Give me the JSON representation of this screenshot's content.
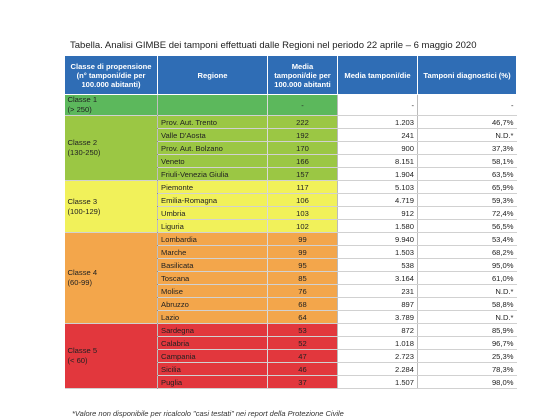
{
  "title": "Tabella. Analisi GIMBE dei tamponi effettuati dalle Regioni nel periodo 22 aprile – 6 maggio 2020",
  "headers": {
    "classe": "Classe di propensione (n° tamponi/die per 100.000 abitanti)",
    "regione": "Regione",
    "media_100k": "Media tamponi/die per 100.000 abitanti",
    "media_die": "Media tamponi/die",
    "diagnostici": "Tamponi diagnostici (%)"
  },
  "colors": {
    "header": "#2f6db5",
    "classe1": "#5cb85c",
    "classe2": "#9bc744",
    "classe3": "#f1f15a",
    "classe4": "#f3a64b",
    "classe5": "#e2373d"
  },
  "classes": [
    {
      "name": "Classe 1",
      "range": "(> 250)",
      "rows": [
        {
          "regione": "",
          "media_100k": "-",
          "media_die": "-",
          "diagnostici": "-"
        }
      ]
    },
    {
      "name": "Classe 2",
      "range": "(130-250)",
      "rows": [
        {
          "regione": "Prov. Aut. Trento",
          "media_100k": "222",
          "media_die": "1.203",
          "diagnostici": "46,7%"
        },
        {
          "regione": "Valle D'Aosta",
          "media_100k": "192",
          "media_die": "241",
          "diagnostici": "N.D.*"
        },
        {
          "regione": "Prov. Aut. Bolzano",
          "media_100k": "170",
          "media_die": "900",
          "diagnostici": "37,3%"
        },
        {
          "regione": "Veneto",
          "media_100k": "166",
          "media_die": "8.151",
          "diagnostici": "58,1%"
        },
        {
          "regione": "Friuli-Venezia Giulia",
          "media_100k": "157",
          "media_die": "1.904",
          "diagnostici": "63,5%"
        }
      ]
    },
    {
      "name": "Classe 3",
      "range": "(100-129)",
      "rows": [
        {
          "regione": "Piemonte",
          "media_100k": "117",
          "media_die": "5.103",
          "diagnostici": "65,9%"
        },
        {
          "regione": "Emilia-Romagna",
          "media_100k": "106",
          "media_die": "4.719",
          "diagnostici": "59,3%"
        },
        {
          "regione": "Umbria",
          "media_100k": "103",
          "media_die": "912",
          "diagnostici": "72,4%"
        },
        {
          "regione": "Liguria",
          "media_100k": "102",
          "media_die": "1.580",
          "diagnostici": "56,5%"
        }
      ]
    },
    {
      "name": "Classe 4",
      "range": "(60-99)",
      "rows": [
        {
          "regione": "Lombardia",
          "media_100k": "99",
          "media_die": "9.940",
          "diagnostici": "53,4%"
        },
        {
          "regione": "Marche",
          "media_100k": "99",
          "media_die": "1.503",
          "diagnostici": "68,2%"
        },
        {
          "regione": "Basilicata",
          "media_100k": "95",
          "media_die": "538",
          "diagnostici": "95,0%"
        },
        {
          "regione": "Toscana",
          "media_100k": "85",
          "media_die": "3.164",
          "diagnostici": "61,0%"
        },
        {
          "regione": "Molise",
          "media_100k": "76",
          "media_die": "231",
          "diagnostici": "N.D.*"
        },
        {
          "regione": "Abruzzo",
          "media_100k": "68",
          "media_die": "897",
          "diagnostici": "58,8%"
        },
        {
          "regione": "Lazio",
          "media_100k": "64",
          "media_die": "3.789",
          "diagnostici": "N.D.*"
        }
      ]
    },
    {
      "name": "Classe 5",
      "range": "(< 60)",
      "rows": [
        {
          "regione": "Sardegna",
          "media_100k": "53",
          "media_die": "872",
          "diagnostici": "85,9%"
        },
        {
          "regione": "Calabria",
          "media_100k": "52",
          "media_die": "1.018",
          "diagnostici": "96,7%"
        },
        {
          "regione": "Campania",
          "media_100k": "47",
          "media_die": "2.723",
          "diagnostici": "25,3%"
        },
        {
          "regione": "Sicilia",
          "media_100k": "46",
          "media_die": "2.284",
          "diagnostici": "78,3%"
        },
        {
          "regione": "Puglia",
          "media_100k": "37",
          "media_die": "1.507",
          "diagnostici": "98,0%"
        }
      ]
    }
  ],
  "footnote": "*Valore non disponibile per ricalcolo \"casi testati\" nei report della Protezione Civile"
}
